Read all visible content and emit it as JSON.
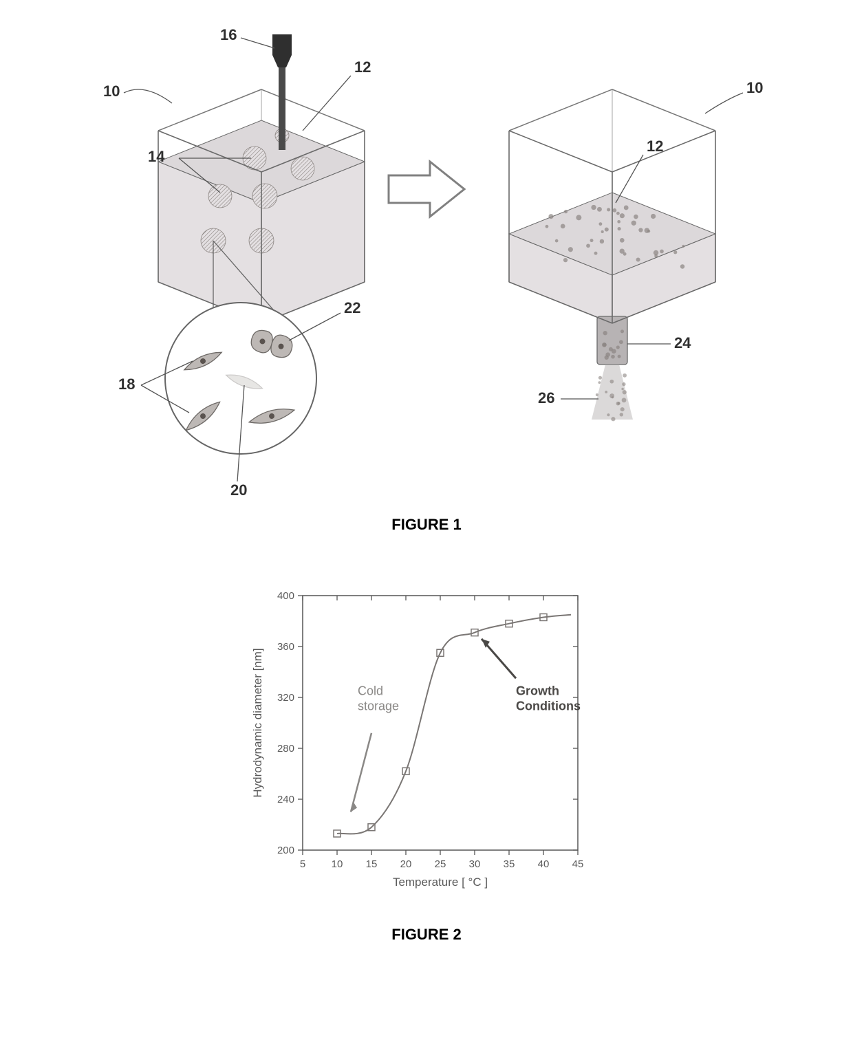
{
  "figure1": {
    "title": "FIGURE 1",
    "labels": {
      "probe": "16",
      "boxLeft": "10",
      "medium": "12",
      "clusters": "14",
      "boxRight": "10",
      "mediumRight": "12",
      "nozzle": "24",
      "spray": "26",
      "cellsLeft": "18",
      "cellCenter": "20",
      "cellDividing": "22"
    },
    "colors": {
      "boxStroke": "#6a6a6a",
      "medium": "#e4e0e2",
      "mediumTop": "#dcd8da",
      "probe": "#4a4a4a",
      "probeDark": "#2f2f2f",
      "cluster": "#8a8481",
      "arrow": "#808080",
      "circleStroke": "#666666",
      "cellFill": "#bdb8b5",
      "cellStroke": "#6e6a67",
      "nucleus": "#5a534f",
      "nozzleFill": "#b7b3b4",
      "labelText": "#303030",
      "leader": "#555555"
    }
  },
  "figure2": {
    "title": "FIGURE 2",
    "xlabel": "Temperature [ °C ]",
    "ylabel": "Hydrodynamic diameter [nm]",
    "xlim": [
      5,
      45
    ],
    "ylim": [
      200,
      400
    ],
    "xticks": [
      5,
      10,
      15,
      20,
      25,
      30,
      35,
      40,
      45
    ],
    "yticks": [
      200,
      240,
      280,
      320,
      360,
      400
    ],
    "data": [
      {
        "x": 10,
        "y": 213
      },
      {
        "x": 15,
        "y": 218
      },
      {
        "x": 20,
        "y": 262
      },
      {
        "x": 25,
        "y": 355
      },
      {
        "x": 30,
        "y": 371
      },
      {
        "x": 35,
        "y": 378
      },
      {
        "x": 40,
        "y": 383
      }
    ],
    "curve_extra_y_at_x45": 385,
    "annotations": {
      "cold": "Cold\nstorage",
      "growth": "Growth\nConditions"
    },
    "colors": {
      "axis": "#555555",
      "tick": "#555555",
      "label": "#5a5a5a",
      "line": "#7a7674",
      "marker_stroke": "#7a7674",
      "marker_fill": "none",
      "cold_text": "#8a8886",
      "growth_text": "#4a4846",
      "cold_arrow": "#8a8886",
      "growth_arrow": "#4a4846",
      "plot_bg": "#ffffff"
    },
    "marker": {
      "type": "square",
      "size": 10,
      "stroke_width": 1.5
    },
    "line_width": 2,
    "tick_fontsize": 15,
    "label_fontsize": 17,
    "annot_fontsize": 18
  }
}
